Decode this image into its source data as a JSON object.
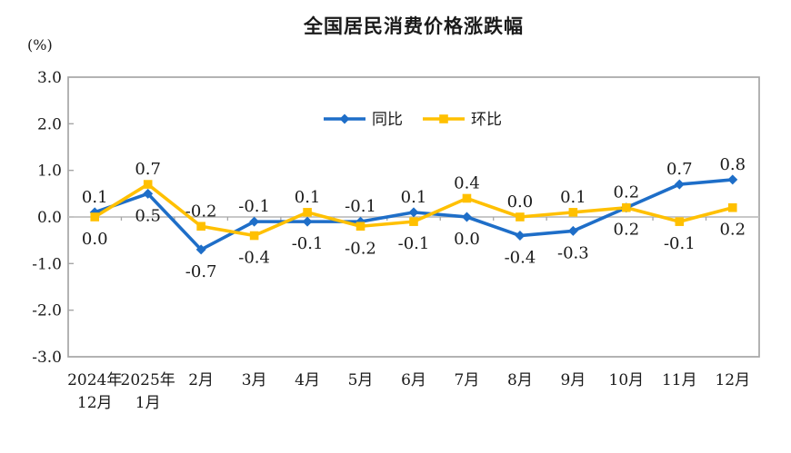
{
  "chart_data": {
    "type": "line",
    "title": "全国居民消费价格涨跌幅",
    "unit_label": "(%)",
    "grid": false,
    "legend_position": "top-center-inside",
    "y_axis": {
      "min": -3.0,
      "max": 3.0,
      "step": 1.0,
      "tick_labels": [
        "3.0",
        "2.0",
        "1.0",
        "0.0",
        "-1.0",
        "-2.0",
        "-3.0"
      ]
    },
    "categories": [
      {
        "line1": "2024年",
        "line2": "12月"
      },
      {
        "line1": "2025年",
        "line2": "1月"
      },
      {
        "line1": "2月"
      },
      {
        "line1": "3月"
      },
      {
        "line1": "4月"
      },
      {
        "line1": "5月"
      },
      {
        "line1": "6月"
      },
      {
        "line1": "7月"
      },
      {
        "line1": "8月"
      },
      {
        "line1": "9月"
      },
      {
        "line1": "10月"
      },
      {
        "line1": "11月"
      },
      {
        "line1": "12月"
      }
    ],
    "series": [
      {
        "name": "同比",
        "key": "yoy",
        "color": "#1E6EC8",
        "marker": "diamond",
        "values": [
          0.1,
          0.5,
          -0.7,
          -0.1,
          -0.1,
          -0.1,
          0.1,
          0.0,
          -0.4,
          -0.3,
          0.2,
          0.7,
          0.8
        ]
      },
      {
        "name": "环比",
        "key": "mom",
        "color": "#FFC000",
        "marker": "square",
        "values": [
          0.0,
          0.7,
          -0.2,
          -0.4,
          0.1,
          -0.2,
          -0.1,
          0.4,
          0.0,
          0.1,
          0.2,
          -0.1,
          0.2
        ]
      }
    ],
    "colors": {
      "axis": "#A6A6A6",
      "zero_line": "#C0C0C0",
      "text": "#1A1A1A"
    }
  }
}
